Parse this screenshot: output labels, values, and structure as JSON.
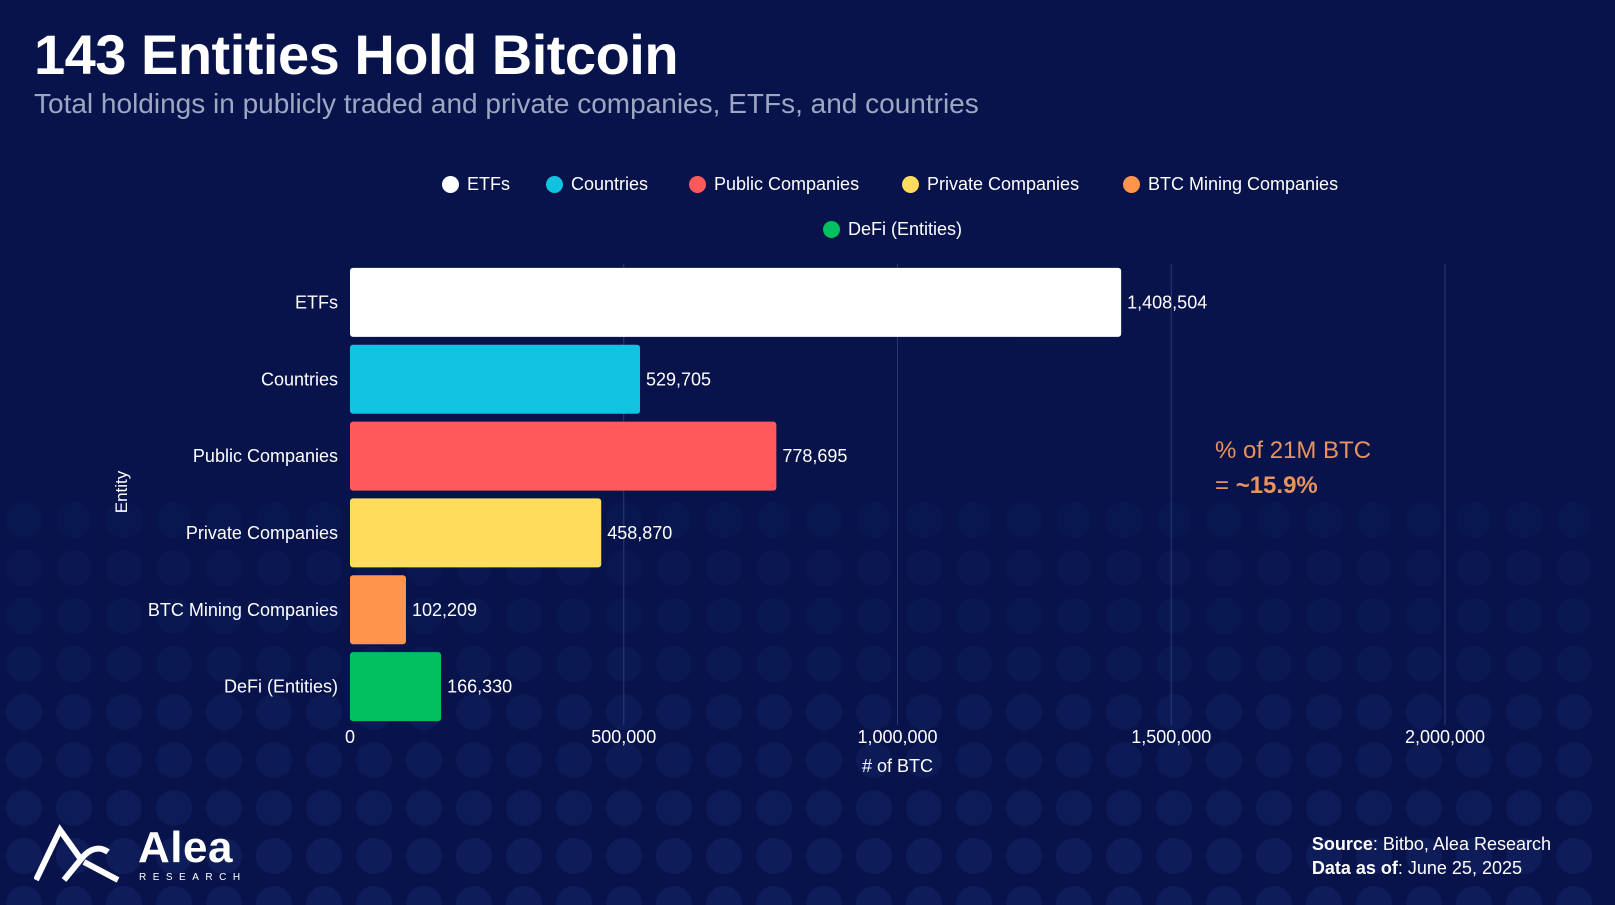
{
  "header": {
    "title": "143 Entities Hold Bitcoin",
    "subtitle": "Total holdings in publicly traded and private companies, ETFs, and countries"
  },
  "legend": [
    {
      "label": "ETFs",
      "color": "#ffffff"
    },
    {
      "label": "Countries",
      "color": "#11c3e1"
    },
    {
      "label": "Public Companies",
      "color": "#ff5a5a"
    },
    {
      "label": "Private Companies",
      "color": "#ffdc5c"
    },
    {
      "label": "BTC Mining Companies",
      "color": "#ff944d"
    },
    {
      "label": "DeFi (Entities)",
      "color": "#00c060"
    }
  ],
  "chart_data": {
    "type": "bar",
    "orientation": "horizontal",
    "categories": [
      "ETFs",
      "Countries",
      "Public Companies",
      "Private Companies",
      "BTC Mining Companies",
      "DeFi (Entities)"
    ],
    "values": [
      1408504,
      529705,
      778695,
      458870,
      102209,
      166330
    ],
    "value_labels": [
      "1,408,504",
      "529,705",
      "778,695",
      "458,870",
      "102,209",
      "166,330"
    ],
    "colors": [
      "#ffffff",
      "#11c3e1",
      "#ff5a5a",
      "#ffdc5c",
      "#ff944d",
      "#00c060"
    ],
    "xlabel": "# of BTC",
    "ylabel": "Entity",
    "xlim": [
      0,
      2000000
    ],
    "x_ticks": [
      0,
      500000,
      1000000,
      1500000,
      2000000
    ],
    "x_tick_labels": [
      "0",
      "500,000",
      "1,000,000",
      "1,500,000",
      "2,000,000"
    ],
    "grid": true,
    "legend_position": "top"
  },
  "callout": {
    "line1": "% of 21M BTC",
    "prefix": "= ",
    "value": "~15.9%",
    "color": "#e9935c"
  },
  "brand": {
    "name": "Alea",
    "sub": "RESEARCH"
  },
  "footer": {
    "source_label": "Source",
    "source_value": ": Bitbo, Alea Research",
    "date_label": "Data as of",
    "date_value": ": June 25, 2025"
  }
}
